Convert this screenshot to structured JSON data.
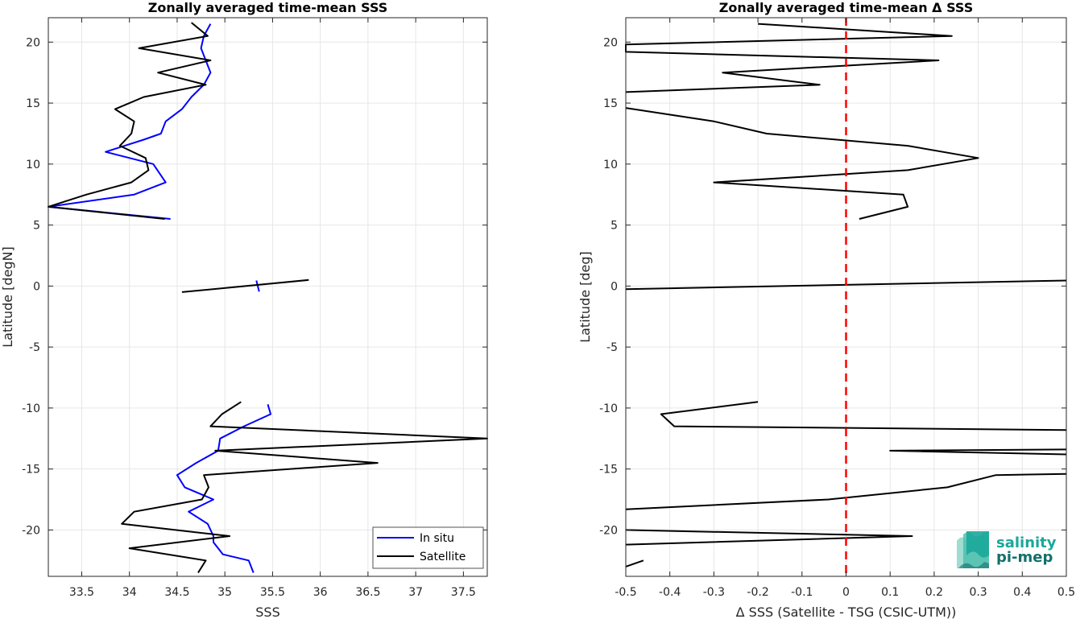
{
  "chart_data": [
    {
      "type": "line",
      "title": "Zonally averaged time-mean SSS",
      "xlabel": "SSS",
      "ylabel": "Latitude [degN]",
      "xlim": [
        33.15,
        37.75
      ],
      "ylim": [
        -23.8,
        22
      ],
      "grid": true,
      "legend": "bottom-right",
      "x_ticks": [
        33.5,
        34,
        34.5,
        35,
        35.5,
        36,
        36.5,
        37,
        37.5
      ],
      "x_tick_labels": [
        "33.5",
        "34",
        "34.5",
        "35",
        "35.5",
        "36",
        "36.5",
        "37",
        "37.5"
      ],
      "y_ticks": [
        20,
        15,
        10,
        5,
        0,
        -5,
        -10,
        -15,
        -20
      ],
      "y_tick_labels": [
        "20",
        "15",
        "10",
        "5",
        "0",
        "-5",
        "-10",
        "-15",
        "-20"
      ],
      "series": [
        {
          "name": "In situ",
          "color": "#0000ff",
          "segments": [
            [
              [
                34.85,
                21.5
              ],
              [
                34.78,
                20.5
              ],
              [
                34.75,
                19.5
              ],
              [
                34.8,
                18.5
              ],
              [
                34.85,
                17.5
              ],
              [
                34.78,
                16.5
              ],
              [
                34.65,
                15.5
              ],
              [
                34.55,
                14.5
              ],
              [
                34.38,
                13.5
              ],
              [
                34.33,
                12.5
              ],
              [
                34.15,
                12.0
              ],
              [
                33.95,
                11.5
              ],
              [
                33.75,
                11.0
              ],
              [
                34.25,
                10.0
              ],
              [
                34.38,
                8.5
              ],
              [
                34.05,
                7.5
              ],
              [
                33.15,
                6.5
              ],
              [
                34.43,
                5.5
              ]
            ],
            [
              [
                35.33,
                0.45
              ],
              [
                35.36,
                -0.45
              ]
            ],
            [
              [
                35.45,
                -9.7
              ],
              [
                35.48,
                -10.5
              ],
              [
                35.2,
                -11.5
              ],
              [
                34.95,
                -12.5
              ],
              [
                34.93,
                -13.5
              ],
              [
                34.7,
                -14.5
              ],
              [
                34.5,
                -15.5
              ],
              [
                34.58,
                -16.5
              ],
              [
                34.88,
                -17.5
              ],
              [
                34.62,
                -18.5
              ],
              [
                34.82,
                -19.5
              ],
              [
                34.88,
                -20.5
              ],
              [
                34.88,
                -21.0
              ],
              [
                34.98,
                -22.0
              ],
              [
                35.25,
                -22.5
              ],
              [
                35.3,
                -23.5
              ]
            ]
          ]
        },
        {
          "name": "Satellite",
          "color": "#000000",
          "segments": [
            [
              [
                34.65,
                21.6
              ],
              [
                34.82,
                20.5
              ],
              [
                34.1,
                19.5
              ],
              [
                34.85,
                18.5
              ],
              [
                34.3,
                17.5
              ],
              [
                34.8,
                16.5
              ],
              [
                34.15,
                15.5
              ],
              [
                33.85,
                14.5
              ],
              [
                34.05,
                13.5
              ],
              [
                34.02,
                12.5
              ],
              [
                33.9,
                11.5
              ],
              [
                34.17,
                10.5
              ],
              [
                34.2,
                9.5
              ],
              [
                34.02,
                8.5
              ],
              [
                33.55,
                7.5
              ],
              [
                33.15,
                6.5
              ],
              [
                34.37,
                5.5
              ]
            ],
            [
              [
                34.55,
                -0.5
              ],
              [
                35.88,
                0.5
              ]
            ],
            [
              [
                35.17,
                -9.5
              ],
              [
                34.97,
                -10.5
              ],
              [
                34.85,
                -11.5
              ],
              [
                37.75,
                -12.5
              ],
              [
                34.9,
                -13.5
              ],
              [
                36.6,
                -14.5
              ],
              [
                34.78,
                -15.5
              ],
              [
                34.83,
                -16.5
              ],
              [
                34.76,
                -17.5
              ],
              [
                34.05,
                -18.5
              ],
              [
                33.92,
                -19.5
              ],
              [
                35.05,
                -20.5
              ],
              [
                34.0,
                -21.5
              ],
              [
                34.8,
                -22.5
              ],
              [
                34.72,
                -23.5
              ]
            ]
          ]
        }
      ]
    },
    {
      "type": "line",
      "title": "Zonally averaged time-mean Δ SSS",
      "xlabel": "Δ SSS (Satellite - TSG (CSIC-UTM))",
      "ylabel": "Latitude [deg]",
      "xlim": [
        -0.5,
        0.5
      ],
      "ylim": [
        -23.8,
        22
      ],
      "grid": true,
      "x_ticks": [
        -0.5,
        -0.4,
        -0.3,
        -0.2,
        -0.1,
        0,
        0.1,
        0.2,
        0.3,
        0.4,
        0.5
      ],
      "x_tick_labels": [
        "-0.5",
        "-0.4",
        "-0.3",
        "-0.2",
        "-0.1",
        "0",
        "0.1",
        "0.2",
        "0.3",
        "0.4",
        "0.5"
      ],
      "y_ticks": [
        20,
        15,
        10,
        5,
        0,
        -5,
        -10,
        -15,
        -20
      ],
      "y_tick_labels": [
        "20",
        "15",
        "10",
        "5",
        "0",
        "-5",
        "-10",
        "-15",
        "-20"
      ],
      "reference_line": {
        "x": 0,
        "color": "#ff0000",
        "style": "dashed"
      },
      "series": [
        {
          "color": "#000000",
          "segments": [
            [
              [
                -0.2,
                21.5
              ],
              [
                0.24,
                20.5
              ],
              [
                -0.5,
                19.8
              ],
              [
                -0.5,
                19.2
              ],
              [
                0.21,
                18.5
              ],
              [
                -0.28,
                17.5
              ],
              [
                -0.06,
                16.5
              ],
              [
                -0.5,
                15.9
              ]
            ],
            [
              [
                -0.5,
                14.6
              ],
              [
                -0.3,
                13.5
              ],
              [
                -0.18,
                12.5
              ],
              [
                0.14,
                11.5
              ],
              [
                0.3,
                10.5
              ],
              [
                0.14,
                9.5
              ],
              [
                -0.3,
                8.5
              ],
              [
                0.13,
                7.5
              ],
              [
                0.14,
                6.5
              ],
              [
                0.03,
                5.5
              ]
            ],
            [
              [
                -0.5,
                -0.25
              ],
              [
                0.5,
                0.45
              ]
            ],
            [
              [
                -0.2,
                -9.5
              ],
              [
                -0.42,
                -10.5
              ],
              [
                -0.39,
                -11.5
              ],
              [
                0.5,
                -11.8
              ]
            ],
            [
              [
                0.5,
                -13.4
              ],
              [
                0.1,
                -13.5
              ],
              [
                0.5,
                -13.8
              ]
            ],
            [
              [
                0.5,
                -15.4
              ],
              [
                0.34,
                -15.5
              ],
              [
                0.23,
                -16.5
              ],
              [
                -0.04,
                -17.5
              ],
              [
                -0.5,
                -18.3
              ]
            ],
            [
              [
                -0.5,
                -20.0
              ],
              [
                0.15,
                -20.5
              ],
              [
                -0.5,
                -21.2
              ]
            ],
            [
              [
                -0.46,
                -22.5
              ],
              [
                -0.5,
                -23.0
              ]
            ]
          ]
        }
      ]
    }
  ],
  "legend": {
    "entries": [
      {
        "label": "In situ",
        "color": "#0000ff"
      },
      {
        "label": "Satellite",
        "color": "#000000"
      }
    ]
  },
  "logo": {
    "line1": "salinity",
    "line2": "pi-mep",
    "color1": "#1aa89a",
    "color2": "#12706a"
  }
}
